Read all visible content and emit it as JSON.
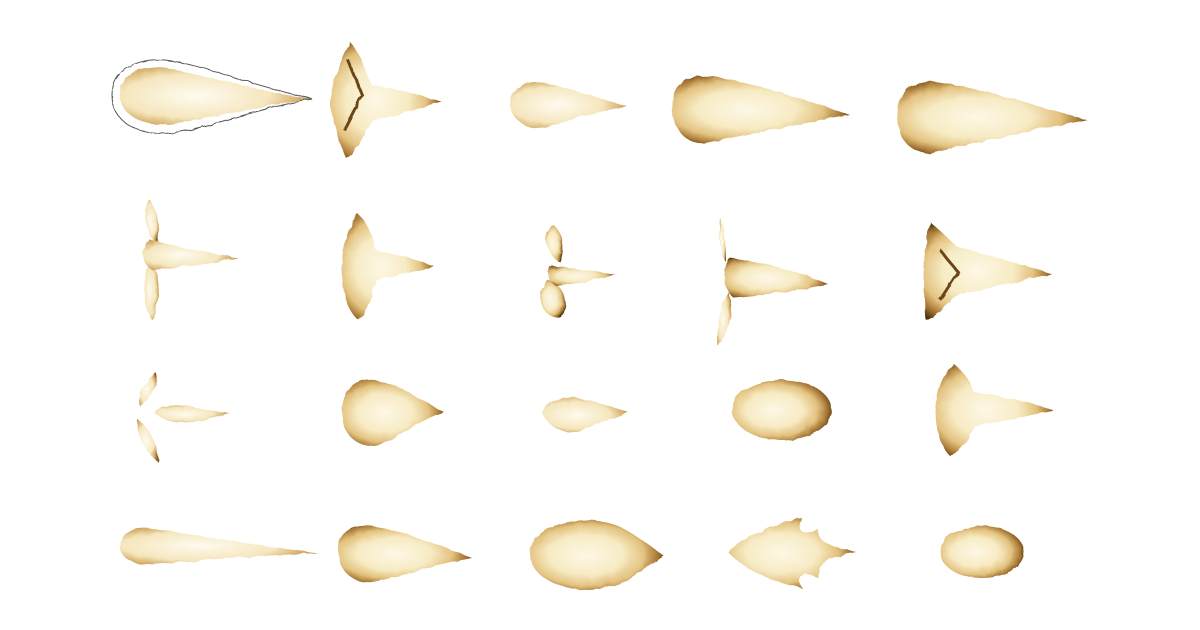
{
  "figure": {
    "rows": 4,
    "columns": 5,
    "background_color": "#ffffff",
    "colors": {
      "core": "#fdf8e6",
      "inner_glow": "#f2deaa",
      "mid": "#c79a4c",
      "rim": "#6b4413",
      "edge": "#3a2408"
    },
    "specimens": [
      {
        "row": 1,
        "col": 1,
        "shape": "long-teardrop-with-halo"
      },
      {
        "row": 1,
        "col": 2,
        "shape": "three-lobed-star"
      },
      {
        "row": 1,
        "col": 3,
        "shape": "small-teardrop"
      },
      {
        "row": 1,
        "col": 4,
        "shape": "wide-teardrop"
      },
      {
        "row": 1,
        "col": 5,
        "shape": "wide-teardrop"
      },
      {
        "row": 2,
        "col": 1,
        "shape": "split-three-prong"
      },
      {
        "row": 2,
        "col": 2,
        "shape": "three-lobed-star"
      },
      {
        "row": 2,
        "col": 3,
        "shape": "split-three-prong"
      },
      {
        "row": 2,
        "col": 4,
        "shape": "split-three-prong"
      },
      {
        "row": 2,
        "col": 5,
        "shape": "three-lobed-star"
      },
      {
        "row": 3,
        "col": 1,
        "shape": "fragmented-three-prong"
      },
      {
        "row": 3,
        "col": 2,
        "shape": "rounded-teardrop"
      },
      {
        "row": 3,
        "col": 3,
        "shape": "small-diamond"
      },
      {
        "row": 3,
        "col": 4,
        "shape": "oval"
      },
      {
        "row": 3,
        "col": 5,
        "shape": "three-lobed-star"
      },
      {
        "row": 4,
        "col": 1,
        "shape": "long-thin-wedge"
      },
      {
        "row": 4,
        "col": 2,
        "shape": "rounded-teardrop"
      },
      {
        "row": 4,
        "col": 3,
        "shape": "arrowhead"
      },
      {
        "row": 4,
        "col": 4,
        "shape": "notched-arrowhead"
      },
      {
        "row": 4,
        "col": 5,
        "shape": "small-oval"
      }
    ]
  }
}
